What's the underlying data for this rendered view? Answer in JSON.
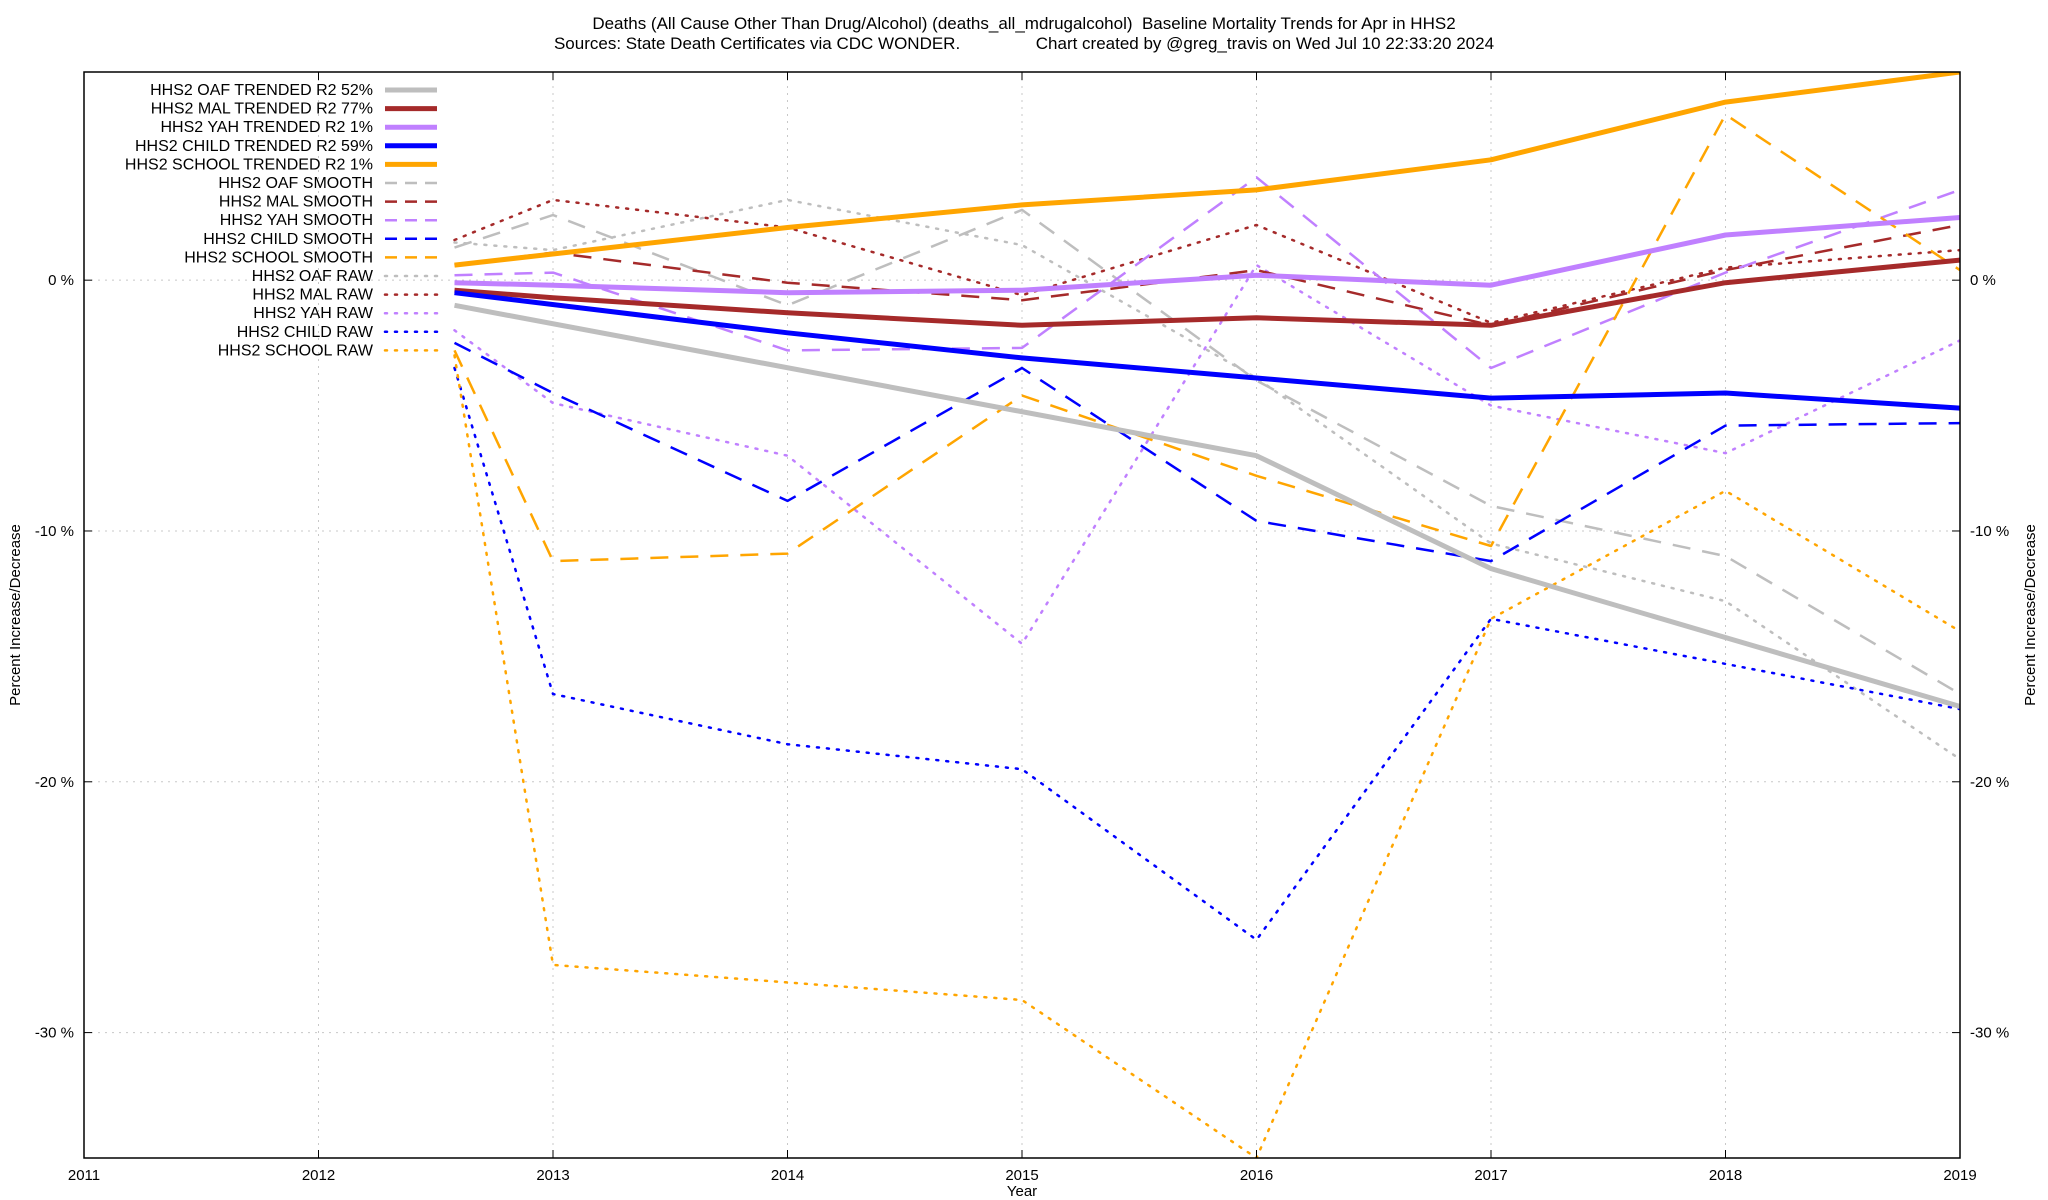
{
  "title": {
    "line1": "Deaths (All Cause Other Than Drug/Alcohol) (deaths_all_mdrugalcohol)  Baseline Mortality Trends for Apr in HHS2",
    "line2": "Sources: State Death Certificates via CDC WONDER.                Chart created by @greg_travis on Wed Jul 10 22:33:20 2024"
  },
  "chart_data": {
    "type": "line",
    "xlabel": "Year",
    "ylabel": "Percent Increase/Decrease",
    "y2label": "Percent Increase/Decrease",
    "xlim": [
      2011,
      2019
    ],
    "ylim": [
      -35,
      8.3
    ],
    "x_ticks": [
      "2011",
      "2012",
      "2013",
      "2014",
      "2015",
      "2016",
      "2017",
      "2018",
      "2019"
    ],
    "y_ticks": [
      {
        "value": 0,
        "label": "0 %"
      },
      {
        "value": -10,
        "label": "-10 %"
      },
      {
        "value": -20,
        "label": "-20 %"
      },
      {
        "value": -30,
        "label": "-30 %"
      }
    ],
    "grid": true,
    "legend_position": "top-left",
    "series": [
      {
        "name": "HHS2 OAF TRENDED R2",
        "r2": "52%",
        "color": "#bebebe",
        "style": "solid",
        "width": 5,
        "x": [
          2012.58,
          2016,
          2017,
          2019
        ],
        "y": [
          -1.0,
          -7.0,
          -11.5,
          -17.0
        ]
      },
      {
        "name": "HHS2 MAL TRENDED R2",
        "r2": "77%",
        "color": "#a52a2a",
        "style": "solid",
        "width": 5,
        "x": [
          2012.58,
          2013,
          2014,
          2015,
          2016,
          2017,
          2018,
          2019
        ],
        "y": [
          -0.4,
          -0.7,
          -1.3,
          -1.8,
          -1.5,
          -1.8,
          -0.1,
          0.8
        ]
      },
      {
        "name": "HHS2 YAH TRENDED R2",
        "r2": "1%",
        "color": "#c080ff",
        "style": "solid",
        "width": 5,
        "x": [
          2012.58,
          2013,
          2014,
          2015,
          2016,
          2017,
          2018,
          2019
        ],
        "y": [
          -0.1,
          -0.2,
          -0.5,
          -0.4,
          0.2,
          -0.2,
          1.8,
          2.5
        ]
      },
      {
        "name": "HHS2 CHILD TRENDED R2",
        "r2": "59%",
        "color": "#0000ff",
        "style": "solid",
        "width": 5,
        "x": [
          2012.58,
          2014,
          2015,
          2016,
          2017,
          2018,
          2019
        ],
        "y": [
          -0.5,
          -2.1,
          -3.1,
          -3.9,
          -4.7,
          -4.5,
          -5.1
        ]
      },
      {
        "name": "HHS2 SCHOOL TRENDED R2",
        "r2": "1%",
        "color": "#ffa500",
        "style": "solid",
        "width": 5,
        "x": [
          2012.58,
          2014,
          2015,
          2016,
          2017,
          2018,
          2019
        ],
        "y": [
          0.6,
          2.1,
          3.0,
          3.6,
          4.8,
          7.1,
          8.3
        ]
      },
      {
        "name": "HHS2 OAF SMOOTH",
        "r2": "",
        "color": "#bebebe",
        "style": "dash",
        "width": 2.5,
        "x": [
          2012.58,
          2013,
          2014,
          2015,
          2016,
          2017,
          2018,
          2019
        ],
        "y": [
          1.3,
          2.6,
          -1.0,
          2.8,
          -4.0,
          -9.0,
          -11.0,
          -16.5
        ]
      },
      {
        "name": "HHS2 MAL SMOOTH",
        "r2": "",
        "color": "#a52a2a",
        "style": "dash",
        "width": 2.5,
        "x": [
          2012.58,
          2013,
          2014,
          2015,
          2016,
          2017,
          2018,
          2019
        ],
        "y": [
          0.6,
          1.1,
          -0.1,
          -0.8,
          0.4,
          -1.8,
          0.4,
          2.2
        ]
      },
      {
        "name": "HHS2 YAH SMOOTH",
        "r2": "",
        "color": "#c080ff",
        "style": "dash",
        "width": 2.5,
        "x": [
          2012.58,
          2013,
          2014,
          2015,
          2016,
          2017,
          2018,
          2019
        ],
        "y": [
          0.2,
          0.3,
          -2.8,
          -2.7,
          4.1,
          -3.5,
          0.3,
          3.6
        ]
      },
      {
        "name": "HHS2 CHILD SMOOTH",
        "r2": "",
        "color": "#0000ff",
        "style": "dash",
        "width": 2.5,
        "x": [
          2012.58,
          2013,
          2014,
          2015,
          2016,
          2017,
          2018,
          2019
        ],
        "y": [
          -2.5,
          -4.5,
          -8.8,
          -3.5,
          -9.6,
          -11.2,
          -5.8,
          -5.7
        ]
      },
      {
        "name": "HHS2 SCHOOL SMOOTH",
        "r2": "",
        "color": "#ffa500",
        "style": "dash",
        "width": 2.5,
        "x": [
          2012.58,
          2013,
          2014,
          2015,
          2016,
          2017,
          2018,
          2019
        ],
        "y": [
          -2.8,
          -11.2,
          -10.9,
          -4.6,
          -7.8,
          -10.6,
          6.6,
          0.4
        ]
      },
      {
        "name": "HHS2 OAF RAW",
        "r2": "",
        "color": "#bebebe",
        "style": "dot",
        "width": 2.5,
        "x": [
          2012.58,
          2013,
          2014,
          2015,
          2016,
          2017,
          2018,
          2019
        ],
        "y": [
          1.5,
          1.2,
          3.2,
          1.4,
          -3.9,
          -10.5,
          -12.8,
          -19.1
        ]
      },
      {
        "name": "HHS2 MAL RAW",
        "r2": "",
        "color": "#a52a2a",
        "style": "dot",
        "width": 2.5,
        "x": [
          2012.58,
          2013,
          2014,
          2015,
          2016,
          2017,
          2018,
          2019
        ],
        "y": [
          1.6,
          3.2,
          2.1,
          -0.6,
          2.2,
          -1.7,
          0.5,
          1.2
        ]
      },
      {
        "name": "HHS2 YAH RAW",
        "r2": "",
        "color": "#c080ff",
        "style": "dot",
        "width": 2.5,
        "x": [
          2012.58,
          2013,
          2014,
          2015,
          2016,
          2017,
          2018,
          2019
        ],
        "y": [
          -2.0,
          -4.9,
          -7.0,
          -14.5,
          0.6,
          -5.0,
          -6.9,
          -2.4
        ]
      },
      {
        "name": "HHS2 CHILD RAW",
        "r2": "",
        "color": "#0000ff",
        "style": "dot",
        "width": 2.5,
        "x": [
          2012.58,
          2013,
          2014,
          2015,
          2016,
          2017,
          2018,
          2019
        ],
        "y": [
          -3.5,
          -16.5,
          -18.5,
          -19.5,
          -26.3,
          -13.5,
          -15.3,
          -17.1
        ]
      },
      {
        "name": "HHS2 SCHOOL RAW",
        "r2": "",
        "color": "#ffa500",
        "style": "dot",
        "width": 2.5,
        "x": [
          2012.58,
          2013,
          2014,
          2015,
          2016,
          2017,
          2018,
          2019
        ],
        "y": [
          -3.0,
          -27.3,
          -28.0,
          -28.7,
          -35.0,
          -13.5,
          -8.4,
          -14.0
        ]
      }
    ]
  }
}
